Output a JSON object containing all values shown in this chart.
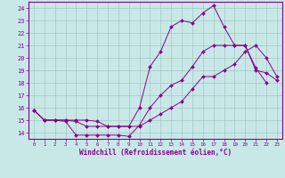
{
  "title": "",
  "xlabel": "Windchill (Refroidissement éolien,°C)",
  "bg_color": "#c8e8e8",
  "line_color": "#880088",
  "grid_color": "#a0c8c0",
  "axis_color": "#880088",
  "xlim": [
    -0.5,
    23.5
  ],
  "ylim": [
    13.5,
    24.5
  ],
  "xticks": [
    0,
    1,
    2,
    3,
    4,
    5,
    6,
    7,
    8,
    9,
    10,
    11,
    12,
    13,
    14,
    15,
    16,
    17,
    18,
    19,
    20,
    21,
    22,
    23
  ],
  "yticks": [
    14,
    15,
    16,
    17,
    18,
    19,
    20,
    21,
    22,
    23,
    24
  ],
  "line1_x": [
    0,
    1,
    2,
    3,
    4,
    5,
    6,
    7,
    8,
    9,
    10,
    11,
    12,
    13,
    14,
    15,
    16,
    17,
    18,
    19,
    20,
    21,
    22,
    23
  ],
  "line1_y": [
    15.8,
    15.0,
    15.0,
    14.9,
    13.8,
    13.8,
    13.8,
    13.8,
    13.8,
    13.7,
    14.6,
    16.0,
    17.0,
    17.8,
    18.2,
    19.3,
    20.5,
    21.0,
    21.0,
    21.0,
    21.0,
    19.0,
    18.8,
    18.2
  ],
  "line2_x": [
    0,
    1,
    2,
    3,
    4,
    5,
    6,
    7,
    8,
    9,
    10,
    11,
    12,
    13,
    14,
    15,
    16,
    17,
    18,
    19,
    20,
    21,
    22
  ],
  "line2_y": [
    15.8,
    15.0,
    15.0,
    15.0,
    15.0,
    15.0,
    14.9,
    14.5,
    14.5,
    14.5,
    16.0,
    19.3,
    20.5,
    22.5,
    23.0,
    22.8,
    23.6,
    24.2,
    22.5,
    21.0,
    21.0,
    19.2,
    18.0
  ],
  "line3_x": [
    0,
    1,
    2,
    3,
    4,
    5,
    6,
    7,
    8,
    9,
    10,
    11,
    12,
    13,
    14,
    15,
    16,
    17,
    18,
    19,
    20,
    21,
    22,
    23
  ],
  "line3_y": [
    15.8,
    15.0,
    15.0,
    15.0,
    14.9,
    14.5,
    14.5,
    14.5,
    14.5,
    14.5,
    14.5,
    15.0,
    15.5,
    16.0,
    16.5,
    17.5,
    18.5,
    18.5,
    19.0,
    19.5,
    20.5,
    21.0,
    20.0,
    18.5
  ]
}
